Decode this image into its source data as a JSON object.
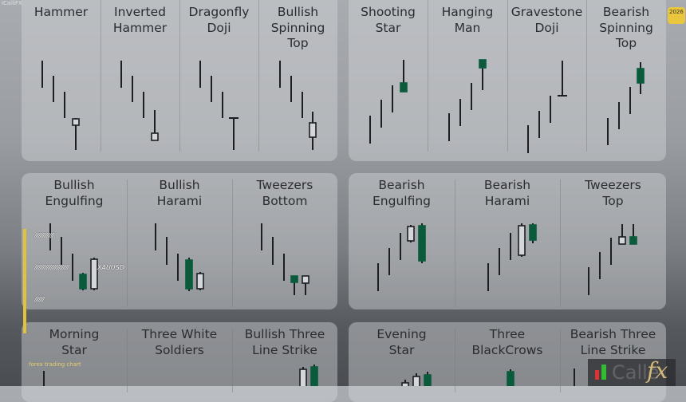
{
  "watermark": "iCalliFX",
  "badge": "2026",
  "panels": [
    {
      "patterns": [
        "Hammer",
        "Inverted\nHammer",
        "Dragonfly\nDoji",
        "Bullish\nSpinning\nTop"
      ]
    },
    {
      "patterns": [
        "Shooting\nStar",
        "Hanging\nMan",
        "Gravestone\nDoji",
        "Bearish\nSpinning\nTop"
      ]
    },
    {
      "patterns": [
        "Bullish\nEngulfing",
        "Bullish\nHarami",
        "Tweezers\nBottom"
      ]
    },
    {
      "patterns": [
        "Bearish\nEngulfing",
        "Bearish\nHarami",
        "Tweezers\nTop"
      ]
    },
    {
      "patterns": [
        "Morning\nStar",
        "Three White\nSoldiers",
        "Bullish Three\nLine Strike"
      ]
    },
    {
      "patterns": [
        "Evening\nStar",
        "Three\nBlackCrows",
        "Bearish Three\nLine Strike"
      ]
    }
  ],
  "overlay": {
    "hash1": "//////////////",
    "hash2": "/////////////////////////",
    "symbol": "XAUUSD",
    "hash3": "///////",
    "caption": "forex trading chart"
  },
  "logo": {
    "text": "Calle",
    "fx": "fx"
  },
  "colors": {
    "bull_body": "#0b5a3c",
    "line": "#1c1e22",
    "accent": "#e2c23a"
  }
}
